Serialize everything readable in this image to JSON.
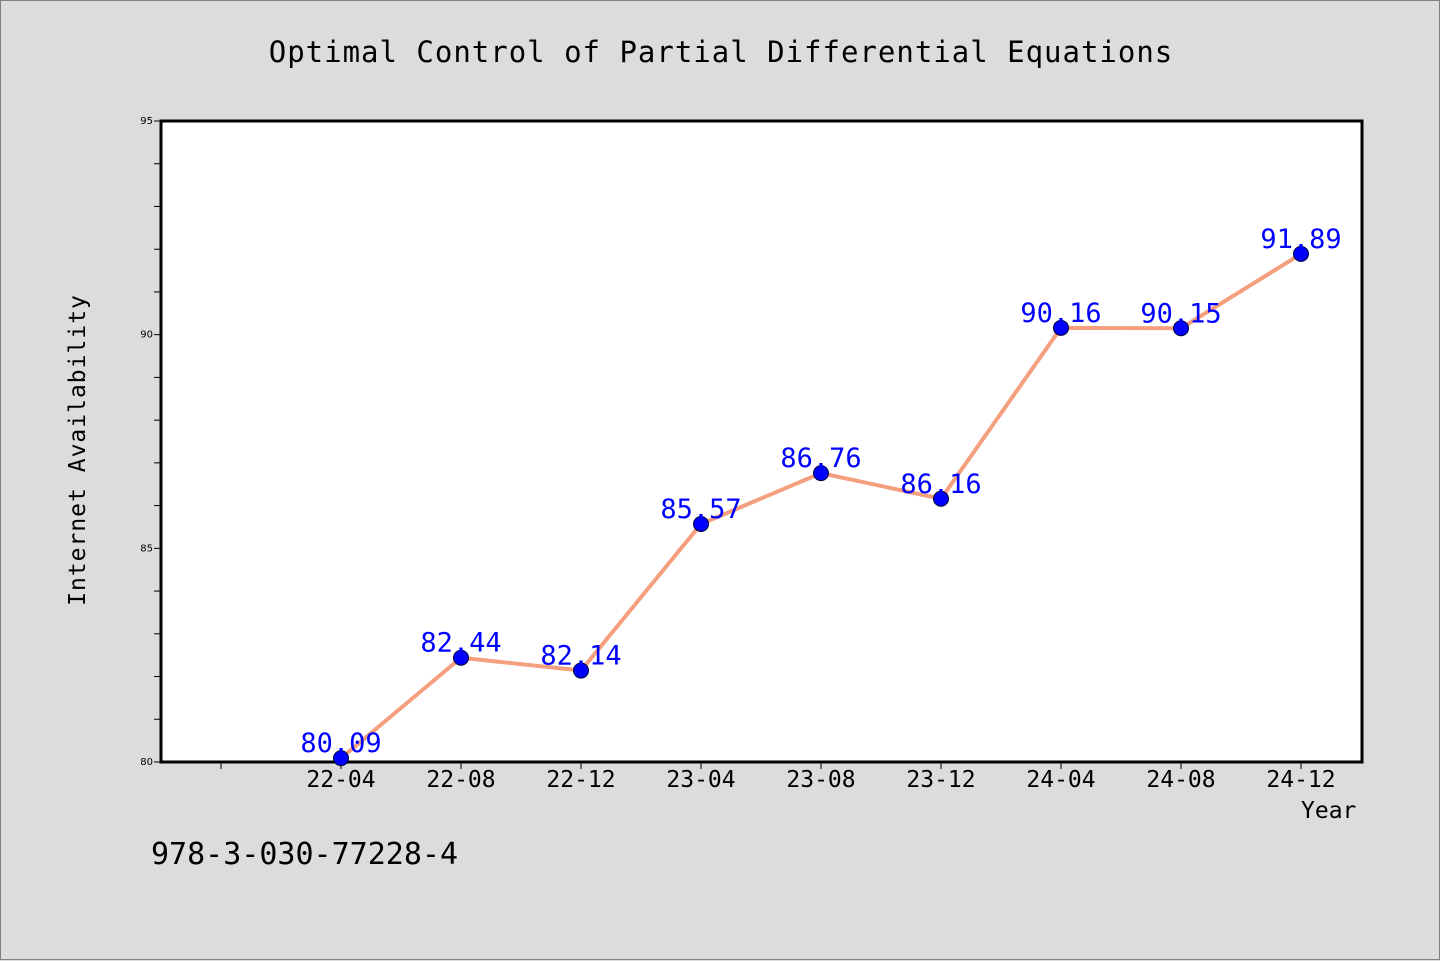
{
  "chart_data": {
    "type": "line",
    "title": "Optimal Control of Partial Differential Equations",
    "xlabel": "Year",
    "ylabel": "Internet Availability",
    "categories": [
      "22-04",
      "22-08",
      "22-12",
      "23-04",
      "23-08",
      "23-12",
      "24-04",
      "24-08",
      "24-12"
    ],
    "series": [
      {
        "values": [
          80.09,
          82.44,
          82.14,
          85.57,
          86.76,
          86.16,
          90.16,
          90.15,
          91.89
        ],
        "data_labels": [
          "80.09",
          "82.44",
          "82.14",
          "85.57",
          "86.76",
          "86.16",
          "90.16",
          "90.15",
          "91.89"
        ],
        "line_color": "#f4a07e",
        "marker_color": "#0000ff",
        "label_color": "#0000ff"
      }
    ],
    "ylim": [
      80,
      95
    ],
    "yticks": [
      80,
      85,
      90,
      95
    ],
    "grid": false,
    "legend": "none"
  },
  "footer": {
    "code": "978-3-030-77228-4"
  },
  "colors": {
    "background": "#dcdcdc",
    "plot_area": "#ffffff",
    "axis": "#000000"
  }
}
